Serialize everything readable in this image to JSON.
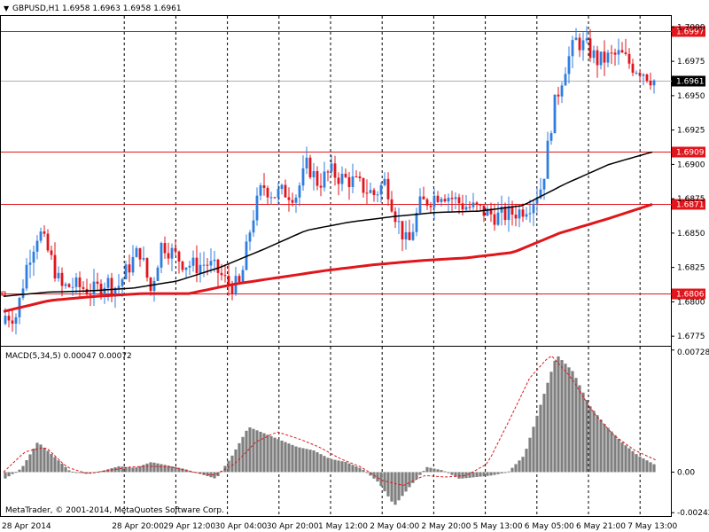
{
  "symbol_header": "GBPUSD,H1  1.6958 1.6963 1.6958 1.6961",
  "copyright": "MetaTrader, © 2001-2014, MetaQuotes Software Corp.",
  "colors": {
    "background": "#ffffff",
    "candle_up": "#2f7de0",
    "candle_down": "#e0161c",
    "ma_fast": "#000000",
    "ma_slow": "#e0161c",
    "level_line": "#e0161c",
    "current_price_line": "#b0b0b0",
    "macd_histogram": "#7f7f7f",
    "macd_signal": "#e0161c",
    "grid": "#000000"
  },
  "chart_data": [
    {
      "type": "candlestick",
      "title": "GBPUSD,H1",
      "ohlc": {
        "open": 1.6958,
        "high": 1.6963,
        "low": 1.6958,
        "close": 1.6961
      },
      "ylim": [
        1.6768,
        1.7008
      ],
      "y_ticks": [
        "1.6775",
        "1.6800",
        "1.6825",
        "1.6850",
        "1.6875",
        "1.6900",
        "1.6925",
        "1.6950",
        "1.6975",
        "1.7000"
      ],
      "x_ticks": [
        "28 Apr 2014",
        "28 Apr 20:00",
        "29 Apr 12:00",
        "30 Apr 04:00",
        "30 Apr 20:00",
        "1 May 12:00",
        "2 May 04:00",
        "2 May 20:00",
        "5 May 13:00",
        "6 May 05:00",
        "6 May 21:00",
        "7 May 13:00"
      ],
      "current_price": "1.6961",
      "horizontal_levels": [
        "1.6997",
        "1.6909",
        "1.6871",
        "1.6806"
      ],
      "close_path": [
        1.679,
        1.679,
        1.683,
        1.6852,
        1.6833,
        1.681,
        1.6812,
        1.681,
        1.6808,
        1.6815,
        1.681,
        1.6825,
        1.6838,
        1.6808,
        1.6843,
        1.6835,
        1.6828,
        1.6826,
        1.6828,
        1.6822,
        1.6812,
        1.6812,
        1.6858,
        1.6885,
        1.6878,
        1.688,
        1.6878,
        1.69,
        1.6886,
        1.6895,
        1.689,
        1.6888,
        1.6883,
        1.6878,
        1.6888,
        1.686,
        1.684,
        1.687,
        1.6875,
        1.688,
        1.6875,
        1.687,
        1.6868,
        1.6865,
        1.6862,
        1.6864,
        1.6866,
        1.6872,
        1.6885,
        1.694,
        1.697,
        1.699,
        1.6985,
        1.6975,
        1.6978,
        1.698,
        1.6972,
        1.6968,
        1.6961
      ],
      "moving_averages": [
        {
          "values": [
            1.6804,
            1.6807,
            1.6808,
            1.681,
            1.6815,
            1.6825,
            1.6838,
            1.6852,
            1.6858,
            1.6862,
            1.6865,
            1.6866,
            1.687,
            1.6886,
            1.69,
            1.6909
          ]
        },
        {
          "values": [
            1.6793,
            1.6801,
            1.6804,
            1.6806,
            1.6806,
            1.6813,
            1.6818,
            1.6823,
            1.6827,
            1.683,
            1.6832,
            1.6836,
            1.685,
            1.686,
            1.6871
          ]
        }
      ]
    },
    {
      "type": "bar",
      "title": "MACD(5,34,5) 0.00047 0.00072",
      "y_ticks": [
        "0.00728",
        "0.00",
        "-0.00242"
      ],
      "ylim": [
        -0.00262,
        0.00748
      ],
      "series": [
        {
          "values": [
            -0.00038,
            0.00022,
            0.0018,
            0.00095,
            5e-05,
            -0.0001,
            8e-05,
            0.00035,
            0.00025,
            0.0006,
            0.0004,
            0.0002,
            -0.0001,
            -0.0004,
            0.001,
            0.0027,
            0.0023,
            0.0019,
            0.0015,
            0.0013,
            0.0008,
            0.0006,
            0.0002,
            -0.0006,
            -0.002,
            -0.0008,
            0.0003,
            0.0001,
            -0.0004,
            -0.0003,
            -0.0002,
            0.0,
            0.001,
            0.004,
            0.007,
            0.006,
            0.004,
            0.0028,
            0.0018,
            0.001,
            0.00047
          ]
        },
        {
          "values": [
            0.0,
            0.0012,
            0.0015,
            0.0003,
            -0.0001,
            0.0001,
            0.0003,
            0.00035,
            0.0003,
            0.0,
            -0.0002,
            0.0005,
            0.0018,
            0.0024,
            0.002,
            0.0015,
            0.0008,
            0.0003,
            -0.0005,
            -0.0008,
            -0.0002,
            -0.0003,
            -0.0002,
            0.0005,
            0.003,
            0.0056,
            0.007,
            0.0056,
            0.0036,
            0.0022,
            0.0013,
            0.00072
          ]
        }
      ]
    }
  ]
}
